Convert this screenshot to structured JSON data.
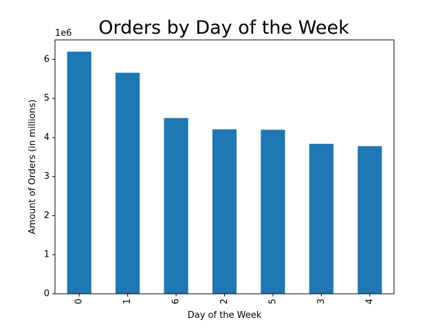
{
  "chart_data": {
    "type": "bar",
    "title": "Orders by Day of the Week",
    "xlabel": "Day of the Week",
    "ylabel": "Amount of Orders (in millions)",
    "y_offset_label": "1e6",
    "categories": [
      "0",
      "1",
      "6",
      "2",
      "5",
      "3",
      "4"
    ],
    "values": [
      6200000,
      5660000,
      4500000,
      4210000,
      4200000,
      3840000,
      3780000
    ],
    "y_ticks": [
      0,
      1,
      2,
      3,
      4,
      5,
      6
    ],
    "ylim": [
      0,
      6500000
    ],
    "grid": false,
    "legend": "none",
    "bar_color": "#1f77b4",
    "x_tick_rotation": "vertical"
  }
}
